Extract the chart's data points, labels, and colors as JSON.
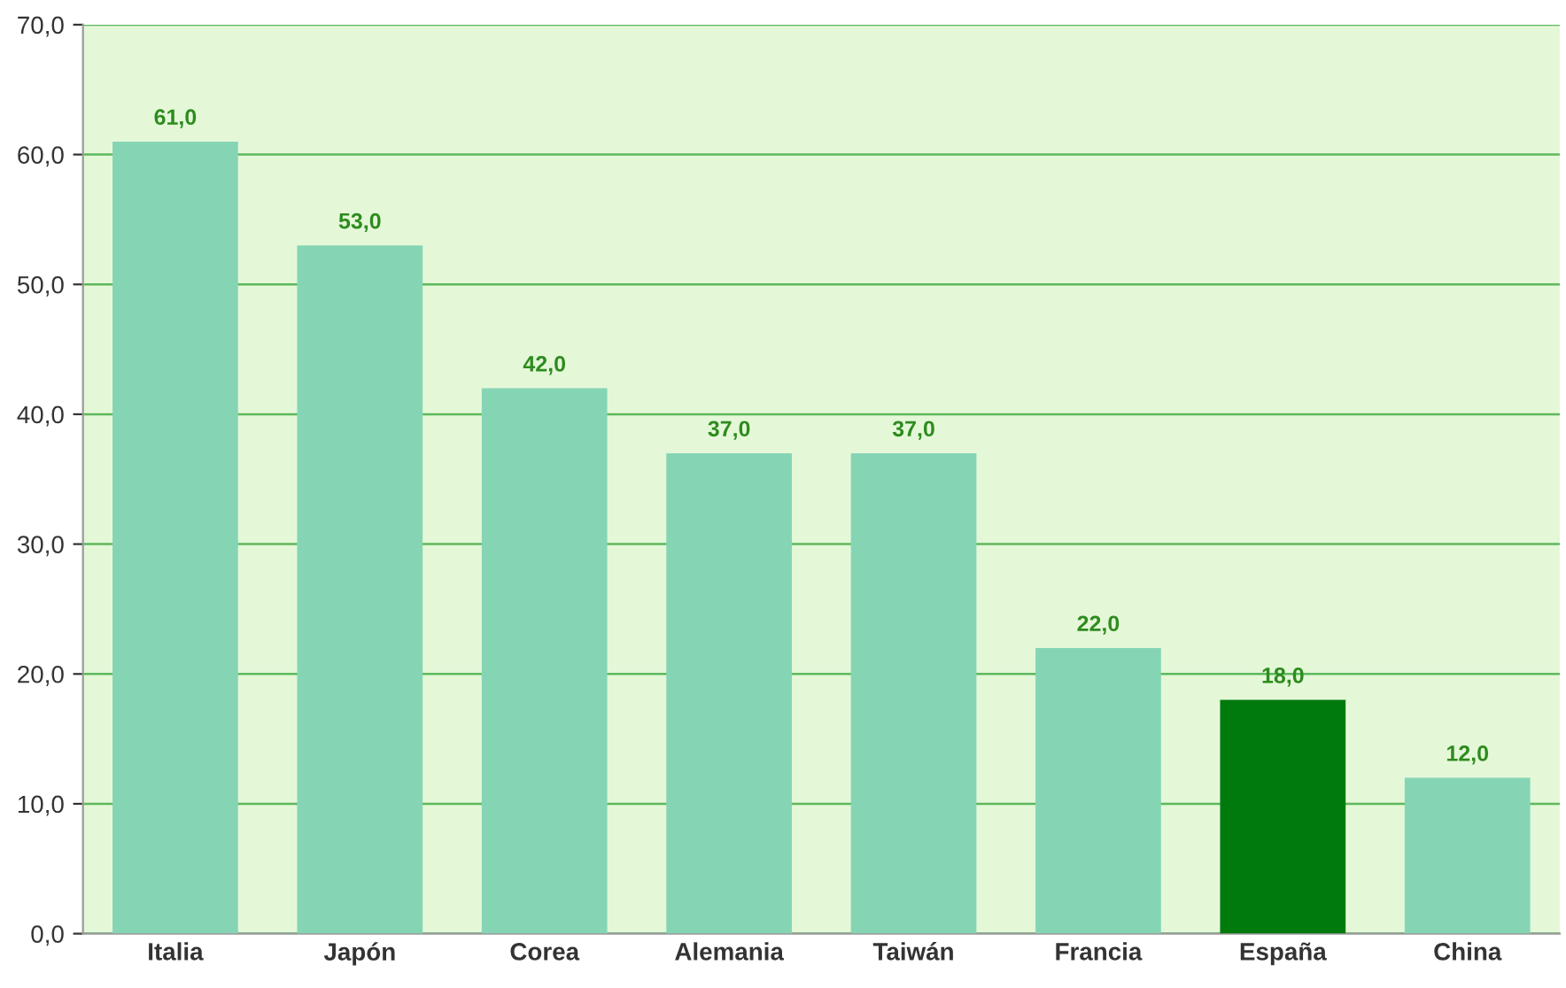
{
  "chart_data": {
    "type": "bar",
    "categories": [
      "Italia",
      "Japón",
      "Corea",
      "Alemania",
      "Taiwán",
      "Francia",
      "España",
      "China"
    ],
    "values": [
      61.0,
      53.0,
      42.0,
      37.0,
      37.0,
      22.0,
      18.0,
      12.0
    ],
    "colors": [
      "#85d5b5",
      "#85d5b5",
      "#85d5b5",
      "#85d5b5",
      "#85d5b5",
      "#85d5b5",
      "#007a0c",
      "#85d5b5"
    ],
    "value_labels": [
      "61,0",
      "53,0",
      "42,0",
      "37,0",
      "37,0",
      "22,0",
      "18,0",
      "12,0"
    ],
    "ylim": [
      0,
      70
    ],
    "yticks": [
      {
        "value": 0,
        "label": "0,0"
      },
      {
        "value": 10,
        "label": "10,0"
      },
      {
        "value": 20,
        "label": "20,0"
      },
      {
        "value": 30,
        "label": "30,0"
      },
      {
        "value": 40,
        "label": "40,0"
      },
      {
        "value": 50,
        "label": "50,0"
      },
      {
        "value": 60,
        "label": "60,0"
      },
      {
        "value": 70,
        "label": "70,0"
      }
    ],
    "grid": "y"
  }
}
